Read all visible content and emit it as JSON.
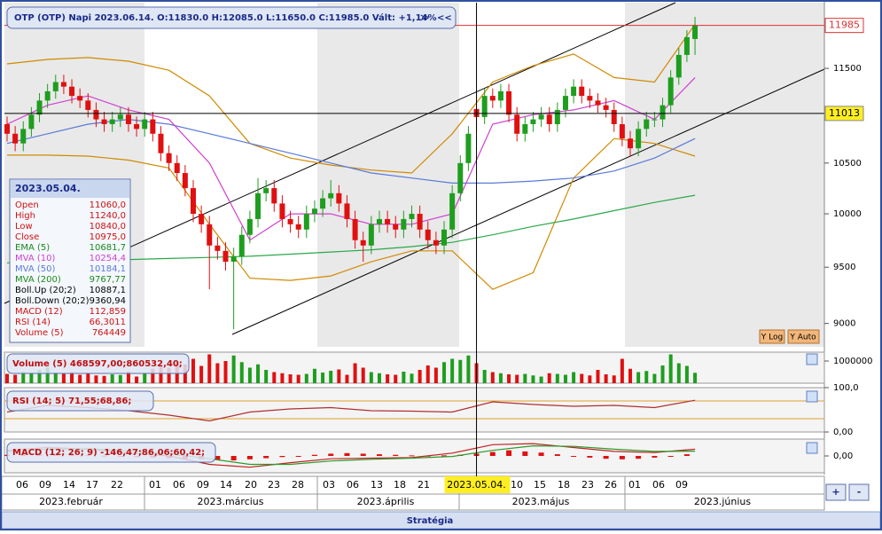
{
  "header": {
    "text": "OTP (OTP)  Napi 2023.06.14. O:11830.0 H:12085.0 L:11650.0 C:11985.0 Vált: +1,14%"
  },
  "chart_data": [
    {
      "type": "candlestick",
      "log_scale": true,
      "up_color": "#1e9e1e",
      "down_color": "#e01010",
      "ylim": [
        8800,
        12250
      ],
      "yticks": [
        9000,
        9500,
        10000,
        10500,
        11500
      ],
      "last_price": 11985,
      "crosshair": {
        "value": 11013,
        "date": "2023.05.04."
      },
      "candles": [
        [
          10900,
          10980,
          10720,
          10800
        ],
        [
          10800,
          10880,
          10620,
          10700
        ],
        [
          10700,
          10930,
          10620,
          10850
        ],
        [
          10850,
          11080,
          10770,
          11000
        ],
        [
          11000,
          11230,
          10920,
          11150
        ],
        [
          11150,
          11330,
          11070,
          11250
        ],
        [
          11250,
          11430,
          11170,
          11350
        ],
        [
          11350,
          11430,
          11220,
          11300
        ],
        [
          11300,
          11380,
          11120,
          11200
        ],
        [
          11200,
          11280,
          11070,
          11150
        ],
        [
          11150,
          11230,
          10970,
          11050
        ],
        [
          11050,
          11130,
          10870,
          10950
        ],
        [
          10950,
          11030,
          10820,
          10900
        ],
        [
          10900,
          11030,
          10820,
          10950
        ],
        [
          10950,
          11080,
          10870,
          11000
        ],
        [
          11000,
          11080,
          10820,
          10900
        ],
        [
          10900,
          10980,
          10770,
          10850
        ],
        [
          10850,
          11030,
          10770,
          10950
        ],
        [
          10950,
          11030,
          10720,
          10800
        ],
        [
          10800,
          10880,
          10520,
          10600
        ],
        [
          10600,
          10680,
          10420,
          10500
        ],
        [
          10500,
          10580,
          10320,
          10400
        ],
        [
          10400,
          10480,
          10170,
          10250
        ],
        [
          10250,
          10330,
          9920,
          10000
        ],
        [
          10000,
          10080,
          9820,
          9900
        ],
        [
          9900,
          9980,
          9300,
          9700
        ],
        [
          9700,
          9780,
          9570,
          9650
        ],
        [
          9650,
          9730,
          9470,
          9550
        ],
        [
          9550,
          9680,
          8950,
          9600
        ],
        [
          9600,
          9880,
          9520,
          9800
        ],
        [
          9800,
          10030,
          9720,
          9950
        ],
        [
          9950,
          10350,
          9870,
          10200
        ],
        [
          10200,
          10330,
          10120,
          10250
        ],
        [
          10250,
          10330,
          10020,
          10100
        ],
        [
          10100,
          10180,
          9870,
          9950
        ],
        [
          9950,
          10030,
          9820,
          9900
        ],
        [
          9900,
          9980,
          9770,
          9850
        ],
        [
          9850,
          10080,
          9770,
          10000
        ],
        [
          10000,
          10130,
          9920,
          10050
        ],
        [
          10050,
          10230,
          9970,
          10150
        ],
        [
          10150,
          10330,
          10070,
          10200
        ],
        [
          10200,
          10280,
          10020,
          10100
        ],
        [
          10100,
          10180,
          9870,
          9950
        ],
        [
          9950,
          10030,
          9670,
          9750
        ],
        [
          9750,
          9830,
          9550,
          9700
        ],
        [
          9700,
          9980,
          9620,
          9900
        ],
        [
          9900,
          10030,
          9820,
          9950
        ],
        [
          9950,
          10030,
          9820,
          9900
        ],
        [
          9900,
          9980,
          9770,
          9850
        ],
        [
          9850,
          10030,
          9770,
          9950
        ],
        [
          9950,
          10080,
          9870,
          10000
        ],
        [
          10000,
          10080,
          9770,
          9850
        ],
        [
          9850,
          9930,
          9670,
          9750
        ],
        [
          9750,
          9830,
          9620,
          9700
        ],
        [
          9700,
          9930,
          9620,
          9850
        ],
        [
          9850,
          10280,
          9770,
          10200
        ],
        [
          10200,
          10580,
          10120,
          10500
        ],
        [
          10500,
          10880,
          10420,
          10800
        ],
        [
          11060,
          11240,
          10840,
          10975
        ],
        [
          10975,
          11280,
          10900,
          11200
        ],
        [
          11200,
          11280,
          11070,
          11150
        ],
        [
          11150,
          11330,
          11070,
          11250
        ],
        [
          11250,
          11330,
          10920,
          11000
        ],
        [
          11000,
          11080,
          10720,
          10800
        ],
        [
          10800,
          10980,
          10720,
          10900
        ],
        [
          10900,
          11030,
          10820,
          10950
        ],
        [
          10950,
          11080,
          10870,
          11000
        ],
        [
          11000,
          11080,
          10820,
          10900
        ],
        [
          10900,
          11130,
          10820,
          11050
        ],
        [
          11050,
          11280,
          10970,
          11200
        ],
        [
          11200,
          11380,
          11120,
          11300
        ],
        [
          11300,
          11380,
          11120,
          11200
        ],
        [
          11200,
          11280,
          11070,
          11150
        ],
        [
          11150,
          11230,
          11020,
          11100
        ],
        [
          11100,
          11180,
          10970,
          11050
        ],
        [
          11050,
          11130,
          10820,
          10900
        ],
        [
          10900,
          10980,
          10670,
          10750
        ],
        [
          10750,
          10830,
          10570,
          10650
        ],
        [
          10650,
          10930,
          10570,
          10850
        ],
        [
          10850,
          11030,
          10770,
          10950
        ],
        [
          10950,
          11030,
          10870,
          10950
        ],
        [
          10950,
          11180,
          10870,
          11100
        ],
        [
          11100,
          11480,
          11020,
          11400
        ],
        [
          11400,
          11730,
          11320,
          11650
        ],
        [
          11650,
          11930,
          11570,
          11850
        ],
        [
          11830,
          12085,
          11650,
          11985
        ]
      ],
      "overlays": [
        {
          "name": "Boll.Up (20;2)",
          "color": "#d08a00",
          "x": [
            0,
            5,
            10,
            15,
            20,
            25,
            30,
            35,
            40,
            45,
            50,
            55,
            60,
            65,
            70,
            75,
            80,
            85
          ],
          "values": [
            11550,
            11600,
            11620,
            11580,
            11480,
            11200,
            10700,
            10550,
            10480,
            10430,
            10400,
            10800,
            11350,
            11530,
            11660,
            11400,
            11350,
            12000
          ]
        },
        {
          "name": "Boll.Down (20;2)",
          "color": "#d08a00",
          "x": [
            0,
            5,
            10,
            15,
            20,
            25,
            30,
            35,
            40,
            45,
            50,
            55,
            60,
            65,
            70,
            75,
            80,
            85
          ],
          "values": [
            10580,
            10580,
            10570,
            10530,
            10450,
            9900,
            9400,
            9380,
            9420,
            9550,
            9650,
            9650,
            9300,
            9450,
            10350,
            10750,
            10700,
            10570
          ]
        },
        {
          "name": "MVA (200)",
          "color": "#2aa84a",
          "x": [
            0,
            5,
            10,
            15,
            20,
            25,
            30,
            35,
            40,
            45,
            50,
            55,
            60,
            65,
            70,
            75,
            80,
            85
          ],
          "values": [
            9540,
            9550,
            9560,
            9570,
            9580,
            9590,
            9600,
            9620,
            9640,
            9660,
            9690,
            9730,
            9800,
            9880,
            9950,
            10030,
            10110,
            10180
          ]
        },
        {
          "name": "MVA (50)",
          "color": "#5a7ad8",
          "x": [
            0,
            5,
            10,
            15,
            20,
            25,
            30,
            35,
            40,
            45,
            50,
            55,
            60,
            65,
            70,
            75,
            80,
            85
          ],
          "values": [
            10700,
            10800,
            10900,
            10950,
            10900,
            10800,
            10700,
            10600,
            10500,
            10400,
            10350,
            10300,
            10300,
            10320,
            10350,
            10420,
            10550,
            10750
          ]
        },
        {
          "name": "MVA (10)",
          "color": "#d040d0",
          "x": [
            0,
            5,
            10,
            15,
            20,
            25,
            30,
            35,
            40,
            45,
            50,
            55,
            60,
            65,
            70,
            75,
            80,
            85
          ],
          "values": [
            10900,
            11100,
            11200,
            11050,
            10950,
            10500,
            9750,
            10000,
            10000,
            9900,
            9900,
            10000,
            10900,
            11000,
            11050,
            11150,
            10950,
            11400
          ]
        }
      ]
    },
    {
      "type": "bar",
      "title": "Volume (5)  468597,00;860532,40;",
      "ylim": [
        0,
        1400000
      ],
      "yticks": [
        1000000
      ],
      "values": [
        420000,
        380000,
        510000,
        450000,
        600000,
        700000,
        480000,
        420000,
        500000,
        380000,
        460000,
        350000,
        330000,
        400000,
        370000,
        520000,
        300000,
        450000,
        650000,
        800000,
        700000,
        900000,
        850000,
        1100000,
        780000,
        1300000,
        900000,
        1000000,
        1250000,
        950000,
        700000,
        850000,
        600000,
        500000,
        450000,
        400000,
        380000,
        420000,
        650000,
        480000,
        560000,
        620000,
        380000,
        900000,
        700000,
        500000,
        450000,
        400000,
        380000,
        520000,
        430000,
        600000,
        800000,
        700000,
        950000,
        1100000,
        1050000,
        1250000,
        900000,
        600000,
        500000,
        450000,
        400000,
        380000,
        420000,
        350000,
        300000,
        450000,
        420000,
        380000,
        500000,
        420000,
        350000,
        600000,
        400000,
        350000,
        1100000,
        650000,
        500000,
        550000,
        420000,
        800000,
        1300000,
        900000,
        780000,
        470000
      ]
    },
    {
      "type": "line",
      "title": "RSI (14; 5)  71,55;68,86;",
      "ylim": [
        0,
        100
      ],
      "yticks": [
        {
          "value": 100,
          "label": "100,0"
        },
        {
          "value": 0,
          "label": "0,00"
        }
      ],
      "levels": [
        70,
        30
      ],
      "color": "#b03030",
      "x": [
        0,
        5,
        10,
        15,
        20,
        25,
        30,
        35,
        40,
        45,
        50,
        55,
        60,
        65,
        70,
        75,
        80,
        85
      ],
      "values": [
        45,
        60,
        55,
        48,
        38,
        25,
        45,
        52,
        55,
        48,
        47,
        45,
        68,
        62,
        58,
        60,
        55,
        71.55
      ]
    },
    {
      "type": "macd",
      "title": "MACD (12; 26; 9)  -146,47;86,06;60,42;",
      "ylim": [
        -300,
        300
      ],
      "yticks": [
        {
          "value": 0,
          "label": "0,00"
        }
      ],
      "series": [
        {
          "name": "MACD",
          "color": "#c02020",
          "x": [
            0,
            5,
            10,
            15,
            20,
            25,
            30,
            35,
            40,
            45,
            50,
            55,
            60,
            65,
            70,
            75,
            80,
            85
          ],
          "values": [
            100,
            150,
            120,
            50,
            0,
            -150,
            -200,
            -120,
            -50,
            -40,
            -30,
            50,
            200,
            220,
            150,
            80,
            60,
            120
          ]
        },
        {
          "name": "Signal",
          "color": "#2a9a2a",
          "x": [
            0,
            5,
            10,
            15,
            20,
            25,
            30,
            35,
            40,
            45,
            50,
            55,
            60,
            65,
            70,
            75,
            80,
            85
          ],
          "values": [
            80,
            120,
            130,
            90,
            40,
            -50,
            -150,
            -150,
            -90,
            -60,
            -40,
            -10,
            100,
            180,
            170,
            120,
            80,
            86
          ]
        }
      ],
      "histogram": {
        "color": "#e01010",
        "x": [
          0,
          2,
          4,
          6,
          8,
          10,
          12,
          14,
          16,
          18,
          20,
          22,
          24,
          26,
          28,
          30,
          32,
          34,
          36,
          38,
          40,
          42,
          44,
          46,
          48,
          50,
          52,
          54,
          56,
          58,
          60,
          62,
          64,
          66,
          68,
          70,
          72,
          74,
          76,
          78,
          80,
          82,
          84
        ],
        "values": [
          20,
          25,
          30,
          30,
          25,
          15,
          5,
          -10,
          -20,
          -30,
          -40,
          -50,
          -60,
          -70,
          -80,
          -60,
          -40,
          -20,
          0,
          20,
          40,
          50,
          40,
          30,
          20,
          10,
          5,
          10,
          20,
          40,
          70,
          100,
          80,
          60,
          30,
          0,
          -30,
          -50,
          -60,
          -50,
          -30,
          -10,
          30
        ]
      }
    }
  ],
  "info_box": {
    "date": "2023.05.04.",
    "rows": [
      {
        "label": "Open",
        "value": "11060,0",
        "color": "#d01010"
      },
      {
        "label": "High",
        "value": "11240,0",
        "color": "#d01010"
      },
      {
        "label": "Low",
        "value": "10840,0",
        "color": "#d01010"
      },
      {
        "label": "Close",
        "value": "10975,0",
        "color": "#d01010"
      },
      {
        "label": "EMA (5)",
        "value": "10681,7",
        "color": "#1a8a1a"
      },
      {
        "label": "MVA (10)",
        "value": "10254,4",
        "color": "#d040d0"
      },
      {
        "label": "MVA (50)",
        "value": "10184,1",
        "color": "#5a7ad8"
      },
      {
        "label": "MVA (200)",
        "value": "9767,77",
        "color": "#1a8a1a"
      },
      {
        "label": "Boll.Up (20;2)",
        "value": "10887,1",
        "color": "#000"
      },
      {
        "label": "Boll.Down (20;2)",
        "value": "9360,94",
        "color": "#000"
      },
      {
        "label": "MACD (12)",
        "value": "112,859",
        "color": "#d01010"
      },
      {
        "label": "RSI (14)",
        "value": "66,3011",
        "color": "#d01010"
      },
      {
        "label": "Volume (5)",
        "value": "764449",
        "color": "#d01010"
      }
    ]
  },
  "x_axis": {
    "days": [
      "06",
      "09",
      "14",
      "17",
      "22",
      "01",
      "06",
      "09",
      "14",
      "20",
      "23",
      "28",
      "03",
      "06",
      "13",
      "18",
      "21",
      "10",
      "15",
      "18",
      "23",
      "26",
      "01",
      "06",
      "09"
    ],
    "months": [
      "2023.február",
      "2023.március",
      "2023.április",
      "2023.május",
      "2023.június"
    ]
  },
  "buttons": {
    "y_log": "Y Log",
    "y_auto": "Y Auto",
    "plus": "+",
    "minus": "-",
    "strategy": "Stratégia",
    "collapse": "≫",
    "back": "<<"
  }
}
